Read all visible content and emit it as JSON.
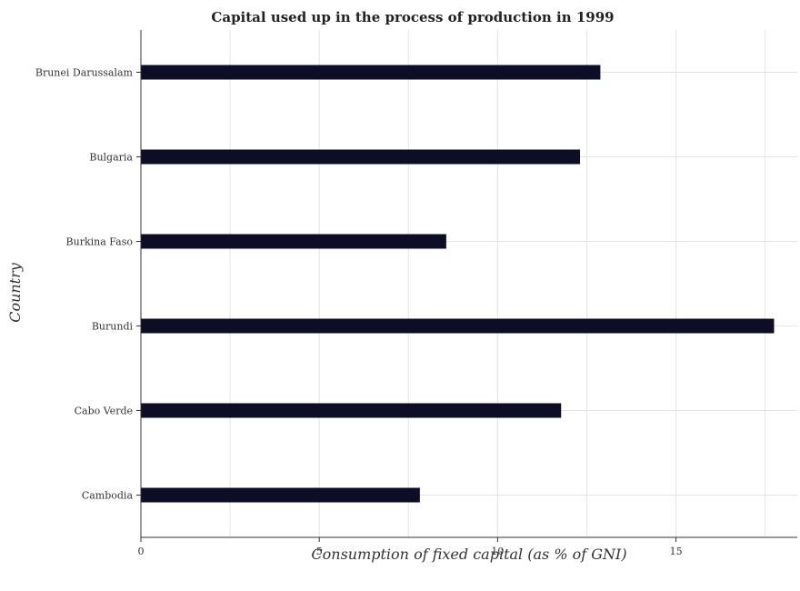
{
  "chart_data": {
    "type": "bar",
    "orientation": "horizontal",
    "title": "Capital used up in the process of production in 1999",
    "xlabel": "Consumption of fixed capital (as % of GNI)",
    "ylabel": "Country",
    "categories": [
      "Brunei Darussalam",
      "Bulgaria",
      "Burkina Faso",
      "Burundi",
      "Cabo Verde",
      "Cambodia"
    ],
    "values": [
      12.88,
      12.31,
      8.56,
      17.75,
      11.78,
      7.82
    ],
    "xlim": [
      0,
      18.4
    ],
    "xticks": [
      0,
      5,
      10,
      15
    ],
    "grid": true,
    "bar_color": "#0d0d26"
  }
}
